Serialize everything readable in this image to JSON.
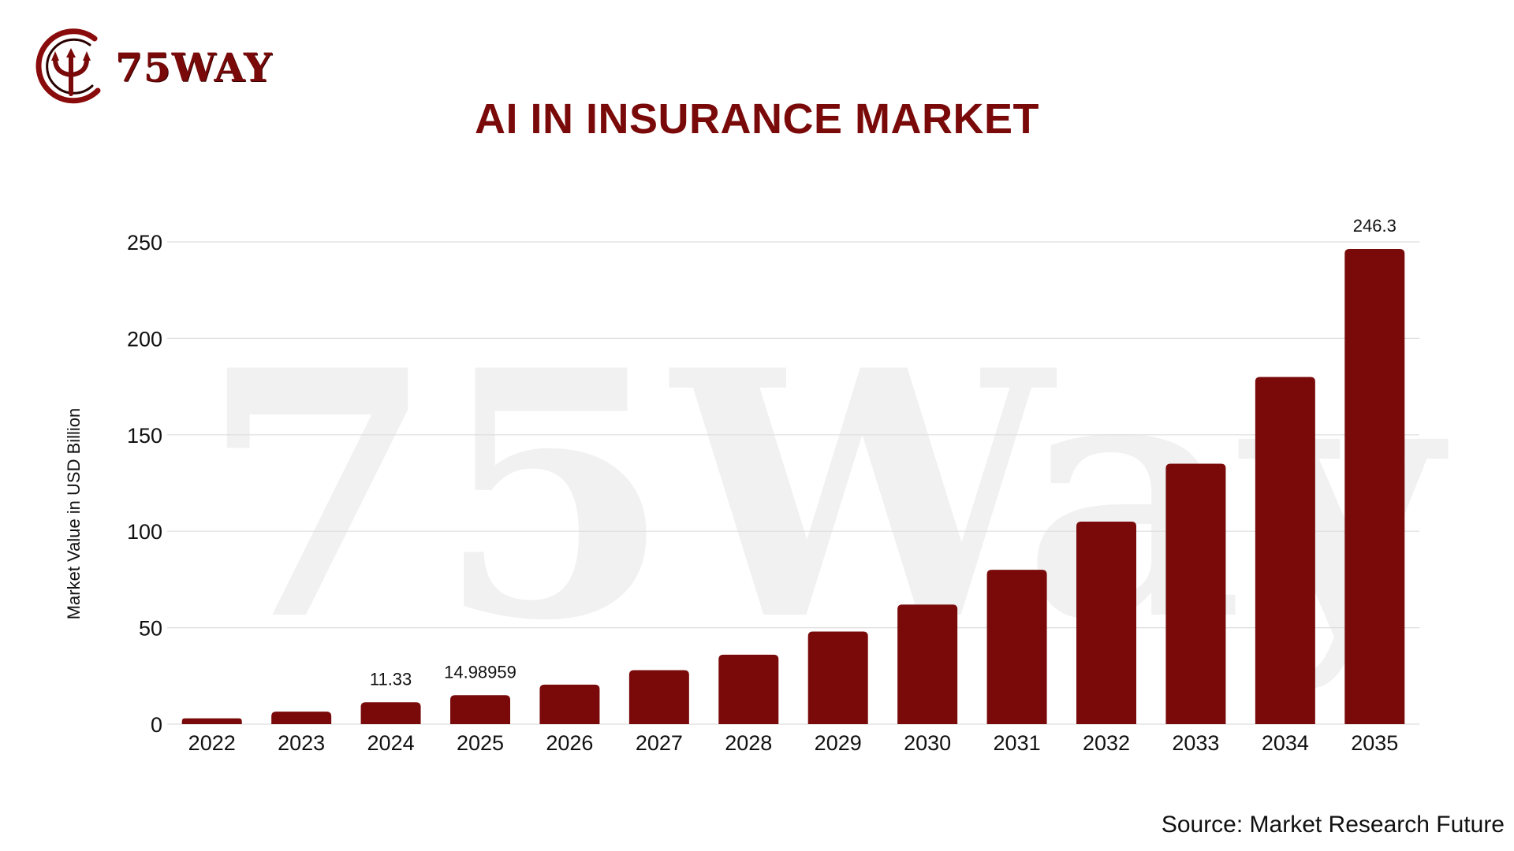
{
  "logo": {
    "text": "75WAY",
    "icon": "trident-circle-logo-icon"
  },
  "watermark": {
    "text": "75Way"
  },
  "source": "Source: Market Research Future",
  "colors": {
    "bar": "#7a0a0a",
    "title": "#7a0a0a",
    "grid": "#dddddd",
    "watermark": "#f1f1f1"
  },
  "chart_data": {
    "type": "bar",
    "title": "AI IN INSURANCE MARKET",
    "xlabel": "",
    "ylabel": "Market Value in USD Billion",
    "categories": [
      "2022",
      "2023",
      "2024",
      "2025",
      "2026",
      "2027",
      "2028",
      "2029",
      "2030",
      "2031",
      "2032",
      "2033",
      "2034",
      "2035"
    ],
    "values": [
      3,
      6.5,
      11.33,
      14.98959,
      20.5,
      28,
      36,
      48,
      62,
      80,
      105,
      135,
      180,
      246.3
    ],
    "data_labels": [
      {
        "category": "2024",
        "text": "11.33"
      },
      {
        "category": "2025",
        "text": "14.98959"
      },
      {
        "category": "2035",
        "text": "246.3"
      }
    ],
    "ylim": [
      0,
      250
    ],
    "yticks": [
      0,
      50,
      100,
      150,
      200,
      250
    ],
    "grid": true,
    "legend": "none"
  }
}
